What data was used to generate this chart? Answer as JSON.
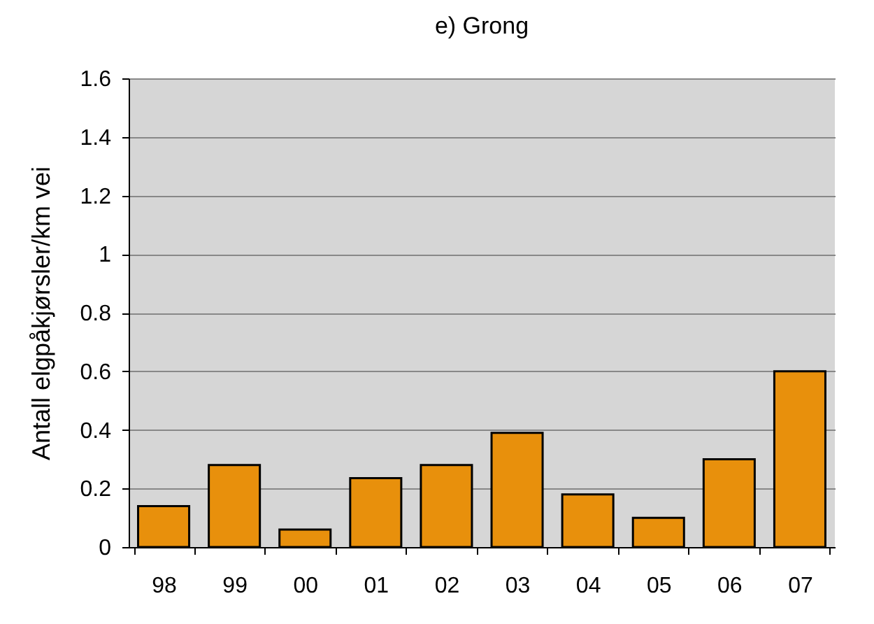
{
  "chart_data": {
    "type": "bar",
    "title": "e) Grong",
    "ylabel": "Antall elgpåkjørsler/km vei",
    "categories": [
      "98",
      "99",
      "00",
      "01",
      "02",
      "03",
      "04",
      "05",
      "06",
      "07"
    ],
    "values": [
      0.14,
      0.28,
      0.06,
      0.235,
      0.28,
      0.39,
      0.18,
      0.1,
      0.3,
      0.6
    ],
    "color": "#e8900c",
    "ylim": [
      0,
      1.6
    ],
    "yticks": [
      0,
      0.2,
      0.4,
      0.6,
      0.8,
      1,
      1.2,
      1.4,
      1.6
    ],
    "grid": "y"
  }
}
